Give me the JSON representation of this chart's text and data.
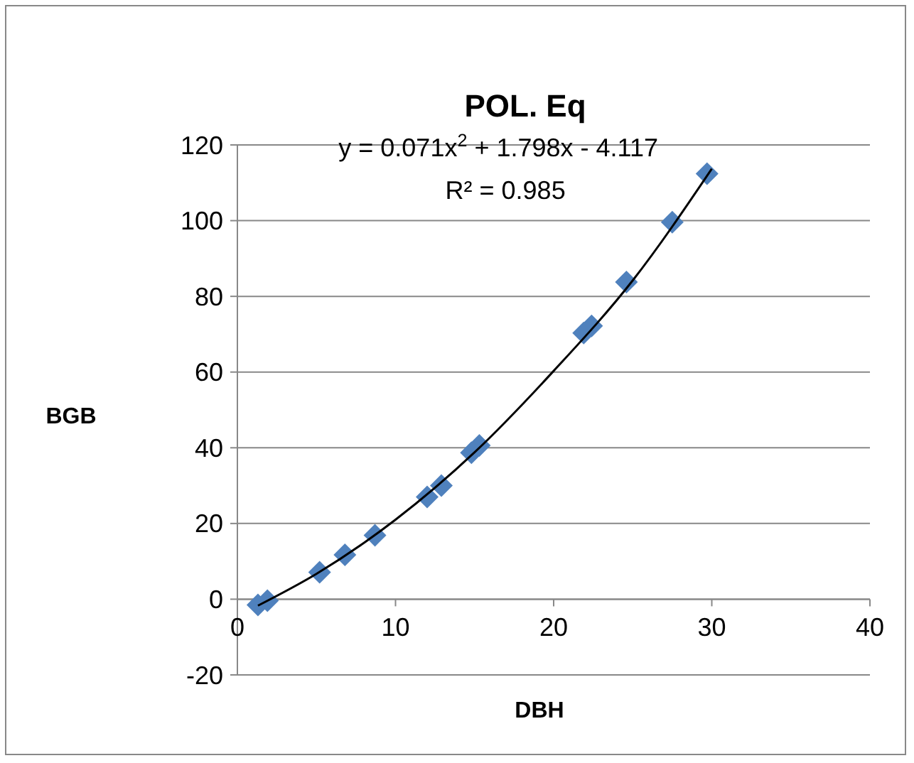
{
  "chart_data": {
    "type": "scatter",
    "title": "POL. Eq",
    "xlabel": "DBH",
    "ylabel": "BGB",
    "xlim": [
      0,
      40
    ],
    "xticks": [
      0,
      10,
      20,
      30,
      40
    ],
    "ylim": [
      -20,
      120
    ],
    "yticks": [
      -20,
      0,
      20,
      40,
      60,
      80,
      100,
      120
    ],
    "grid": "y",
    "marker": "diamond",
    "annotations": [
      "y = 0.071x$^{2}$ + 1.798x - 4.117",
      "R² = 0.985"
    ],
    "series": [
      {
        "color": "#4f81bd",
        "x": [
          1.3,
          1.9,
          5.2,
          6.8,
          8.7,
          12,
          12.9,
          14.8,
          15.3,
          21.9,
          22.4,
          24.6,
          27.5,
          29.7
        ],
        "values": [
          -1.5,
          -0.4,
          7.1,
          11.7,
          16.9,
          27,
          30,
          38.7,
          40.6,
          70.3,
          72.2,
          83.8,
          99.6,
          112.4
        ]
      },
      {
        "type": "line",
        "color": "#000000",
        "marker": "none",
        "x": [
          1.3,
          5,
          10,
          15,
          20,
          25,
          30
        ],
        "values": [
          -1.7,
          6.7,
          21,
          38.8,
          60.3,
          84.2,
          113.7
        ]
      }
    ]
  }
}
